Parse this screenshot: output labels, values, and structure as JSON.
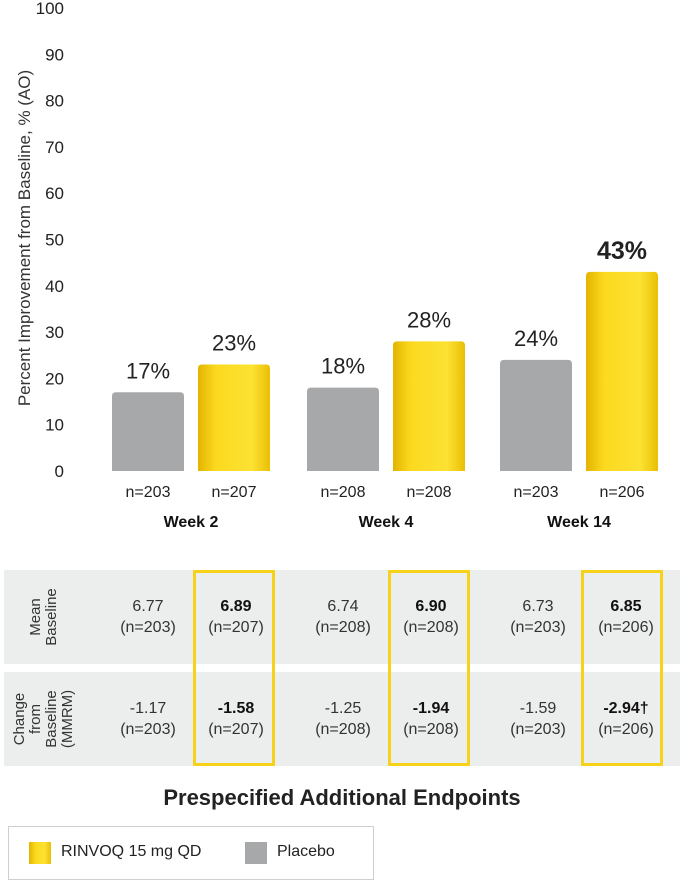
{
  "chart_data": {
    "type": "bar",
    "ylabel": "Percent Improvement from Baseline, % (AO)",
    "ylim": [
      0,
      100
    ],
    "yticks": [
      0,
      10,
      20,
      30,
      40,
      50,
      60,
      70,
      80,
      90,
      100
    ],
    "groups": [
      "Week 2",
      "Week 4",
      "Week 14"
    ],
    "series": [
      {
        "name": "Placebo",
        "color": "#a6a8aa",
        "values": [
          17,
          18,
          24
        ],
        "labels": [
          "17%",
          "18%",
          "24%"
        ],
        "n": [
          "n=203",
          "n=208",
          "n=203"
        ]
      },
      {
        "name": "RINVOQ 15 mg QD",
        "color": "#f7cf14",
        "values": [
          23,
          28,
          43
        ],
        "labels": [
          "23%",
          "28%",
          "43%"
        ],
        "n": [
          "n=207",
          "n=208",
          "n=206"
        ]
      }
    ]
  },
  "table": {
    "rows": [
      {
        "header": [
          "Mean",
          "Baseline"
        ],
        "cells": [
          {
            "v": "6.77",
            "n": "(n=203)",
            "bold": false
          },
          {
            "v": "6.89",
            "n": "(n=207)",
            "bold": true
          },
          {
            "v": "6.74",
            "n": "(n=208)",
            "bold": false
          },
          {
            "v": "6.90",
            "n": "(n=208)",
            "bold": true
          },
          {
            "v": "6.73",
            "n": "(n=203)",
            "bold": false
          },
          {
            "v": "6.85",
            "n": "(n=206)",
            "bold": true
          }
        ]
      },
      {
        "header": [
          "Change",
          "from",
          "Baseline",
          "(MMRM)"
        ],
        "cells": [
          {
            "v": "-1.17",
            "n": "(n=203)",
            "bold": false
          },
          {
            "v": "-1.58",
            "n": "(n=207)",
            "bold": true
          },
          {
            "v": "-1.25",
            "n": "(n=208)",
            "bold": false
          },
          {
            "v": "-1.94",
            "n": "(n=208)",
            "bold": true
          },
          {
            "v": "-1.59",
            "n": "(n=203)",
            "bold": false
          },
          {
            "v": "-2.94†",
            "n": "(n=206)",
            "bold": true
          }
        ]
      }
    ]
  },
  "footer_title": "Prespecified Additional Endpoints",
  "legend": {
    "rinvoq_label": "RINVOQ 15 mg QD",
    "placebo_label": "Placebo",
    "rinvoq_color": "#f7cf14",
    "placebo_color": "#a6a8aa"
  }
}
